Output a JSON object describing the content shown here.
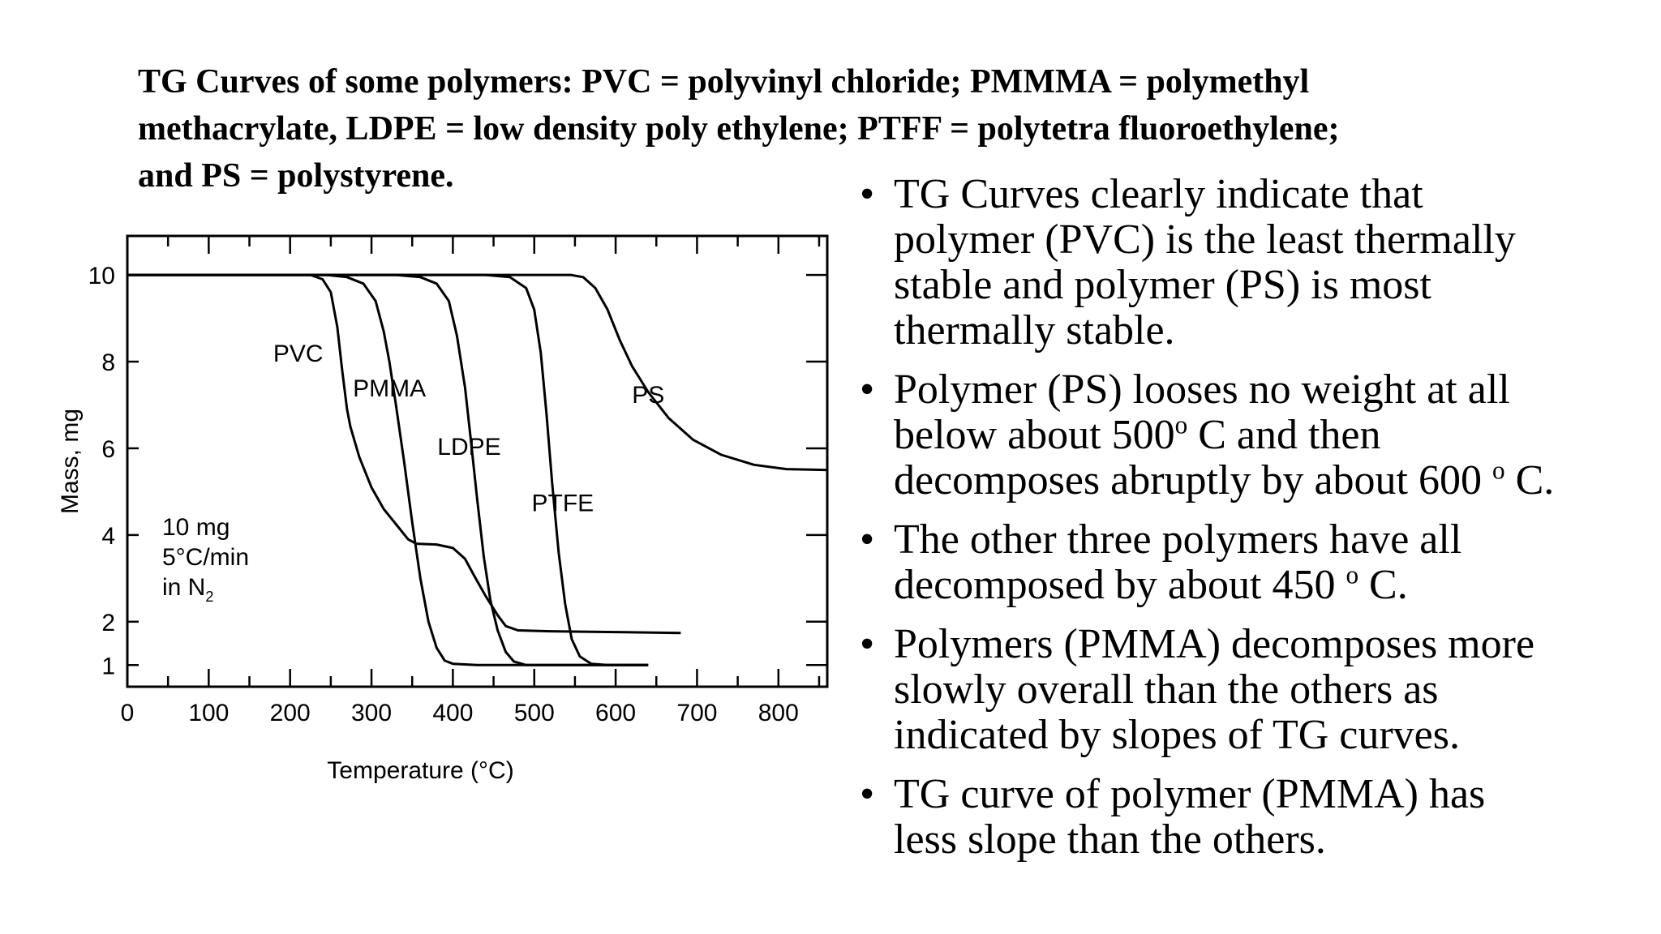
{
  "caption": {
    "line1": "TG Curves of some polymers: PVC = polyvinyl chloride; PMMMA = polymethyl",
    "line2": "methacrylate, LDPE = low density poly ethylene; PTFF = polytetra fluoroethylene;",
    "line3": "and PS = polystyrene."
  },
  "chart_data": {
    "type": "line",
    "title": "",
    "xlabel": "Temperature (°C)",
    "ylabel": "Mass, mg",
    "xlim": [
      0,
      860
    ],
    "ylim": [
      0.5,
      10.9
    ],
    "x_ticks": [
      "0",
      "100",
      "200",
      "300",
      "400",
      "500",
      "600",
      "700",
      "800"
    ],
    "y_ticks": [
      "10",
      "8",
      "6",
      "4",
      "2",
      "1"
    ],
    "grid": false,
    "annotation": [
      "10 mg",
      "5°C/min",
      "in N",
      "2"
    ],
    "series": [
      {
        "name": "PVC",
        "points": [
          [
            0,
            10
          ],
          [
            225,
            10
          ],
          [
            240,
            9.9
          ],
          [
            250,
            9.6
          ],
          [
            258,
            8.8
          ],
          [
            264,
            7.8
          ],
          [
            270,
            6.9
          ],
          [
            274,
            6.5
          ],
          [
            285,
            5.8
          ],
          [
            300,
            5.1
          ],
          [
            315,
            4.6
          ],
          [
            330,
            4.25
          ],
          [
            345,
            3.9
          ],
          [
            355,
            3.8
          ],
          [
            380,
            3.78
          ],
          [
            400,
            3.7
          ],
          [
            415,
            3.45
          ],
          [
            425,
            3.1
          ],
          [
            440,
            2.6
          ],
          [
            455,
            2.15
          ],
          [
            465,
            1.9
          ],
          [
            480,
            1.8
          ],
          [
            520,
            1.78
          ],
          [
            600,
            1.76
          ],
          [
            680,
            1.74
          ]
        ]
      },
      {
        "name": "PMMA",
        "points": [
          [
            0,
            10
          ],
          [
            245,
            10
          ],
          [
            270,
            9.95
          ],
          [
            290,
            9.8
          ],
          [
            305,
            9.4
          ],
          [
            315,
            8.7
          ],
          [
            322,
            8.0
          ],
          [
            330,
            7.0
          ],
          [
            340,
            5.7
          ],
          [
            350,
            4.3
          ],
          [
            360,
            3.0
          ],
          [
            370,
            2.0
          ],
          [
            380,
            1.4
          ],
          [
            390,
            1.1
          ],
          [
            400,
            1.03
          ],
          [
            430,
            1.0
          ],
          [
            640,
            1.0
          ]
        ]
      },
      {
        "name": "LDPE",
        "points": [
          [
            0,
            10
          ],
          [
            330,
            10
          ],
          [
            360,
            9.95
          ],
          [
            380,
            9.8
          ],
          [
            395,
            9.4
          ],
          [
            405,
            8.6
          ],
          [
            415,
            7.4
          ],
          [
            422,
            6.2
          ],
          [
            430,
            4.8
          ],
          [
            438,
            3.5
          ],
          [
            446,
            2.5
          ],
          [
            455,
            1.8
          ],
          [
            465,
            1.3
          ],
          [
            475,
            1.08
          ],
          [
            490,
            1.0
          ],
          [
            640,
            1.0
          ]
        ]
      },
      {
        "name": "PTFE",
        "points": [
          [
            0,
            10
          ],
          [
            440,
            10
          ],
          [
            470,
            9.95
          ],
          [
            490,
            9.7
          ],
          [
            500,
            9.2
          ],
          [
            508,
            8.2
          ],
          [
            515,
            6.8
          ],
          [
            522,
            5.2
          ],
          [
            530,
            3.6
          ],
          [
            538,
            2.4
          ],
          [
            546,
            1.6
          ],
          [
            556,
            1.2
          ],
          [
            570,
            1.03
          ],
          [
            590,
            1.0
          ],
          [
            640,
            1.0
          ]
        ]
      },
      {
        "name": "PS",
        "points": [
          [
            0,
            10
          ],
          [
            545,
            10
          ],
          [
            560,
            9.95
          ],
          [
            575,
            9.7
          ],
          [
            590,
            9.2
          ],
          [
            605,
            8.5
          ],
          [
            620,
            7.9
          ],
          [
            640,
            7.3
          ],
          [
            665,
            6.7
          ],
          [
            695,
            6.2
          ],
          [
            730,
            5.85
          ],
          [
            770,
            5.62
          ],
          [
            810,
            5.52
          ],
          [
            860,
            5.5
          ]
        ]
      }
    ],
    "labels": [
      {
        "text": "PVC",
        "x": 210,
        "y": 8.0
      },
      {
        "text": "PMMA",
        "x": 322,
        "y": 7.2
      },
      {
        "text": "LDPE",
        "x": 420,
        "y": 5.85
      },
      {
        "text": "PTFE",
        "x": 535,
        "y": 4.55
      },
      {
        "text": "PS",
        "x": 640,
        "y": 7.05
      }
    ]
  },
  "bullets": [
    {
      "lines": [
        "TG Curves clearly indicate that",
        "polymer (PVC) is the least thermally",
        "stable and polymer (PS) is most",
        "thermally stable."
      ]
    },
    {
      "lines": [
        "Polymer (PS) looses no weight at all",
        "below about 500",
        "o",
        " C and then",
        "decomposes abruptly by about 600 ",
        "o",
        " C."
      ]
    },
    {
      "lines": [
        "The other three polymers have all",
        "decomposed by about 450 ",
        "o",
        " C."
      ]
    },
    {
      "lines": [
        "Polymers (PMMA) decomposes more",
        "slowly overall than the others as",
        "indicated by slopes of TG curves."
      ]
    },
    {
      "lines": [
        "TG curve of polymer (PMMA) has",
        "less slope than the others."
      ]
    }
  ],
  "bullet_symbol": "•"
}
